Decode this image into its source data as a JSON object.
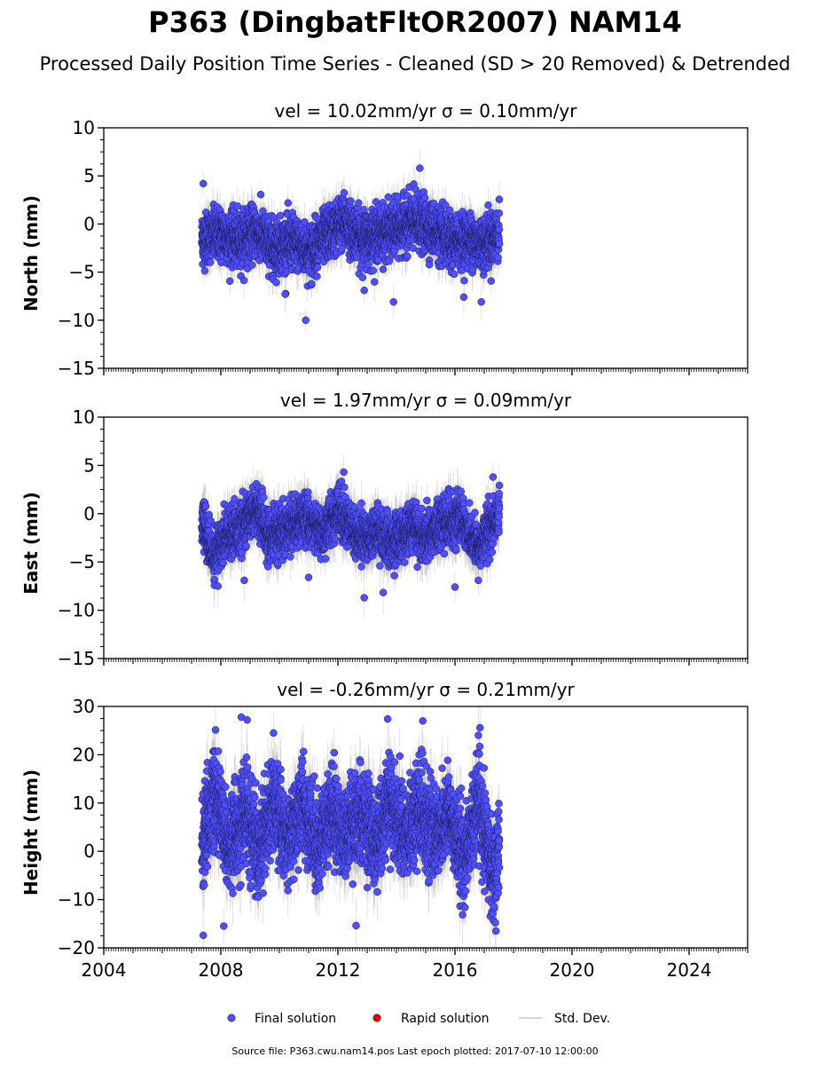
{
  "title": "P363 (DingbatFltOR2007) NAM14",
  "subtitle": "Processed Daily Position Time Series - Cleaned (SD > 20 Removed) & Detrended",
  "legend": {
    "placement": "bottom-center",
    "entries": [
      {
        "label": "Final solution",
        "color": "#4f4fff",
        "marker": "circle"
      },
      {
        "label": "Rapid solution",
        "color": "#e00000",
        "marker": "circle"
      },
      {
        "label": "Std. Dev.",
        "color": "#c8c8c8",
        "marker": "line"
      }
    ]
  },
  "footer": "Source file: P363.cwu.nam14.pos  Last epoch plotted: 2017-07-10 12:00:00",
  "colors": {
    "point_fill": "#4f4fff",
    "point_edge": "#1a1a55",
    "errorbar": "#a0a0a0"
  },
  "chart_data": [
    {
      "type": "scatter",
      "panel_title": "vel = 10.02mm/yr   σ = 0.10mm/yr",
      "ylabel": "North (mm)",
      "xlim": [
        2004,
        2026
      ],
      "ylim": [
        -15,
        10
      ],
      "yticks": [
        10,
        5,
        0,
        -5,
        -10,
        -15
      ],
      "xticks": [
        2004,
        2008,
        2012,
        2016,
        2020,
        2024
      ],
      "grid": false,
      "data_range_x": [
        2007.35,
        2017.52
      ],
      "envelope": [
        [
          2007.4,
          -1.5
        ],
        [
          2008.0,
          -1.0
        ],
        [
          2008.6,
          -1.8
        ],
        [
          2009.2,
          -0.7
        ],
        [
          2009.8,
          -2.5
        ],
        [
          2010.4,
          -1.8
        ],
        [
          2011.0,
          -2.8
        ],
        [
          2011.6,
          -1.2
        ],
        [
          2012.2,
          0.3
        ],
        [
          2012.8,
          -1.5
        ],
        [
          2013.4,
          -1.0
        ],
        [
          2014.0,
          -0.6
        ],
        [
          2014.6,
          0.3
        ],
        [
          2015.2,
          -0.4
        ],
        [
          2015.8,
          -2.0
        ],
        [
          2016.4,
          -1.5
        ],
        [
          2017.0,
          -2.0
        ],
        [
          2017.5,
          -1.0
        ]
      ],
      "scatter_sd": 1.3,
      "errorbar_mm": 1.6,
      "outliers": [
        [
          2007.4,
          4.2
        ],
        [
          2014.8,
          5.8
        ],
        [
          2010.9,
          -10.0
        ],
        [
          2013.9,
          -8.1
        ],
        [
          2016.9,
          -8.1
        ],
        [
          2010.2,
          -7.3
        ],
        [
          2016.3,
          -7.6
        ],
        [
          2011.1,
          -6.2
        ],
        [
          2012.9,
          -6.9
        ]
      ]
    },
    {
      "type": "scatter",
      "panel_title": "vel = 1.97mm/yr   σ = 0.09mm/yr",
      "ylabel": "East (mm)",
      "xlim": [
        2004,
        2026
      ],
      "ylim": [
        -15,
        10
      ],
      "yticks": [
        10,
        5,
        0,
        -5,
        -10,
        -15
      ],
      "xticks": [
        2004,
        2008,
        2012,
        2016,
        2020,
        2024
      ],
      "grid": false,
      "data_range_x": [
        2007.35,
        2017.52
      ],
      "envelope": [
        [
          2007.4,
          -1.0
        ],
        [
          2007.7,
          -4.5
        ],
        [
          2008.2,
          -2.0
        ],
        [
          2008.7,
          -1.5
        ],
        [
          2009.2,
          0.5
        ],
        [
          2009.7,
          -2.5
        ],
        [
          2010.3,
          -1.5
        ],
        [
          2010.9,
          -0.5
        ],
        [
          2011.5,
          -2.0
        ],
        [
          2012.0,
          0.5
        ],
        [
          2012.7,
          -2.5
        ],
        [
          2013.3,
          -2.0
        ],
        [
          2013.9,
          -3.0
        ],
        [
          2014.5,
          -1.5
        ],
        [
          2015.0,
          -2.5
        ],
        [
          2015.6,
          -1.0
        ],
        [
          2016.2,
          -0.5
        ],
        [
          2016.8,
          -3.5
        ],
        [
          2017.5,
          0.0
        ]
      ],
      "scatter_sd": 1.2,
      "errorbar_mm": 1.8,
      "outliers": [
        [
          2012.2,
          4.3
        ],
        [
          2012.9,
          -8.7
        ],
        [
          2007.9,
          -7.5
        ],
        [
          2008.8,
          -6.9
        ],
        [
          2011.0,
          -6.6
        ],
        [
          2016.0,
          -7.6
        ],
        [
          2016.8,
          -6.9
        ],
        [
          2017.3,
          3.8
        ]
      ]
    },
    {
      "type": "scatter",
      "panel_title": "vel = -0.26mm/yr   σ = 0.21mm/yr",
      "ylabel": "Height (mm)",
      "xlim": [
        2004,
        2026
      ],
      "ylim": [
        -20,
        30
      ],
      "yticks": [
        30,
        20,
        10,
        0,
        -10,
        -20
      ],
      "xticks": [
        2004,
        2008,
        2012,
        2016,
        2020,
        2024
      ],
      "grid": false,
      "data_range_x": [
        2007.35,
        2017.52
      ],
      "envelope": [
        [
          2007.4,
          3.0
        ],
        [
          2007.8,
          12.0
        ],
        [
          2008.3,
          0.0
        ],
        [
          2008.8,
          8.0
        ],
        [
          2009.3,
          0.0
        ],
        [
          2009.8,
          10.0
        ],
        [
          2010.3,
          2.0
        ],
        [
          2010.8,
          10.0
        ],
        [
          2011.3,
          1.0
        ],
        [
          2011.8,
          8.0
        ],
        [
          2012.3,
          3.0
        ],
        [
          2012.8,
          8.0
        ],
        [
          2013.3,
          2.0
        ],
        [
          2013.8,
          10.0
        ],
        [
          2014.3,
          3.0
        ],
        [
          2014.8,
          9.0
        ],
        [
          2015.3,
          3.0
        ],
        [
          2015.8,
          8.0
        ],
        [
          2016.3,
          -2.0
        ],
        [
          2016.8,
          10.0
        ],
        [
          2017.3,
          -5.0
        ],
        [
          2017.5,
          2.0
        ]
      ],
      "scatter_sd": 4.5,
      "errorbar_mm": 5.0,
      "outliers": [
        [
          2007.4,
          -17.4
        ],
        [
          2008.7,
          27.8
        ],
        [
          2008.9,
          27.2
        ],
        [
          2013.7,
          27.4
        ],
        [
          2014.9,
          27.0
        ],
        [
          2009.8,
          24.5
        ],
        [
          2016.8,
          24.0
        ],
        [
          2008.1,
          -15.5
        ],
        [
          2017.4,
          -16.5
        ]
      ]
    }
  ]
}
